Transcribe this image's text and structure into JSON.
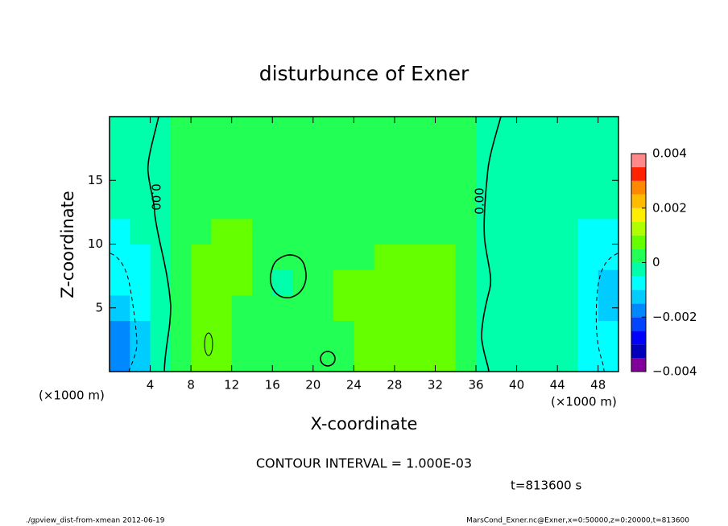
{
  "chart_data": {
    "type": "contourf",
    "title": "disturbunce of Exner",
    "x_label": "X-coordinate",
    "y_label": "Z-coordinate",
    "x_unit": "(×1000 m)",
    "y_unit": "(×1000 m)",
    "xlim": [
      0,
      50
    ],
    "ylim": [
      0,
      20
    ],
    "xticks": [
      4,
      8,
      12,
      16,
      20,
      24,
      28,
      32,
      36,
      40,
      44,
      48
    ],
    "yticks": [
      5,
      10,
      15
    ],
    "x": [
      1,
      3,
      5,
      7,
      9,
      11,
      13,
      15,
      17,
      19,
      21,
      23,
      25,
      27,
      29,
      31,
      33,
      35,
      37,
      39,
      41,
      43,
      45,
      47,
      49
    ],
    "y": [
      1,
      3,
      5,
      7,
      9,
      11,
      13,
      15,
      17,
      19
    ],
    "values": [
      [
        -0.0016,
        -0.0018,
        -0.0014,
        -0.001,
        -0.0007,
        -0.0006,
        -0.0004,
        -0.0003,
        -0.0002,
        -0.0002
      ],
      [
        -0.0011,
        -0.0012,
        -0.001,
        -0.0008,
        -0.0006,
        -0.0004,
        -0.0003,
        -0.0002,
        -0.0002,
        -0.0002
      ],
      [
        -0.0002,
        -0.0003,
        -0.0003,
        -0.0003,
        -0.0002,
        -0.0001,
        -0.0001,
        -0.0001,
        -0.0001,
        -0.0001
      ],
      [
        0.0004,
        0.0004,
        0.0004,
        0.0003,
        0.0003,
        0.0002,
        0.0002,
        0.0002,
        0.0002,
        0.0002
      ],
      [
        0.0007,
        0.0007,
        0.0006,
        0.0006,
        0.0005,
        0.0004,
        0.0002,
        0.0002,
        0.0002,
        0.0002
      ],
      [
        0.0006,
        0.0006,
        0.0006,
        0.0006,
        0.0006,
        0.0005,
        0.0002,
        0.0002,
        0.0002,
        0.0002
      ],
      [
        0.0004,
        0.0004,
        0.0004,
        0.0005,
        0.0006,
        0.0006,
        0.0003,
        0.0002,
        0.0002,
        0.0002
      ],
      [
        0.0003,
        0.0003,
        0.0003,
        0.0003,
        0.0003,
        0.0003,
        0.0002,
        0.0002,
        0.0002,
        0.0002
      ],
      [
        0.0003,
        0.0003,
        0.0002,
        -0.0001,
        0.0002,
        0.0002,
        0.0002,
        0.0002,
        0.0002,
        0.0002
      ],
      [
        0.0003,
        0.0003,
        0.0003,
        0.0002,
        0.0003,
        0.0002,
        0.0002,
        0.0002,
        0.0002,
        0.0002
      ],
      [
        0.0002,
        0.0003,
        0.0004,
        0.0003,
        0.0003,
        0.0002,
        0.0002,
        0.0002,
        0.0002,
        0.0002
      ],
      [
        0.0004,
        0.0004,
        0.0005,
        0.0005,
        0.0004,
        0.0003,
        0.0002,
        0.0002,
        0.0002,
        0.0002
      ],
      [
        0.0006,
        0.0006,
        0.0006,
        0.0006,
        0.0004,
        0.0003,
        0.0002,
        0.0002,
        0.0002,
        0.0002
      ],
      [
        0.0006,
        0.0006,
        0.0006,
        0.0006,
        0.0005,
        0.0004,
        0.0003,
        0.0002,
        0.0002,
        0.0002
      ],
      [
        0.0005,
        0.0006,
        0.0006,
        0.0006,
        0.0006,
        0.0004,
        0.0003,
        0.0002,
        0.0002,
        0.0002
      ],
      [
        0.0006,
        0.0006,
        0.0006,
        0.0006,
        0.0005,
        0.0004,
        0.0003,
        0.0002,
        0.0002,
        0.0002
      ],
      [
        0.0005,
        0.0006,
        0.0006,
        0.0006,
        0.0005,
        0.0003,
        0.0002,
        0.0002,
        0.0002,
        0.0002
      ],
      [
        0.0003,
        0.0003,
        0.0003,
        0.0003,
        0.0003,
        0.0002,
        0.0002,
        0.0002,
        0.0002,
        0.0002
      ],
      [
        -0.0001,
        -0.0001,
        -0.0001,
        -0.0001,
        -0.0001,
        -0.0001,
        -0.0001,
        -0.0001,
        -0.0001,
        -0.0001
      ],
      [
        -0.0003,
        -0.0004,
        -0.0003,
        -0.0003,
        -0.0002,
        -0.0002,
        -0.0002,
        -0.0002,
        -0.0002,
        -0.0002
      ],
      [
        -0.0003,
        -0.0003,
        -0.0003,
        -0.0003,
        -0.0003,
        -0.0003,
        -0.0003,
        -0.0003,
        -0.0003,
        -0.0003
      ],
      [
        -0.0003,
        -0.0003,
        -0.0003,
        -0.0003,
        -0.0003,
        -0.0003,
        -0.0003,
        -0.0002,
        -0.0002,
        -0.0002
      ],
      [
        -0.0004,
        -0.0004,
        -0.0004,
        -0.0004,
        -0.0004,
        -0.0004,
        -0.0004,
        -0.0004,
        -0.0003,
        -0.0002
      ],
      [
        -0.0006,
        -0.0006,
        -0.0006,
        -0.0007,
        -0.0007,
        -0.0006,
        -0.0005,
        -0.0004,
        -0.0003,
        -0.0003
      ],
      [
        -0.0009,
        -0.001,
        -0.0011,
        -0.0011,
        -0.001,
        -0.0007,
        -0.0005,
        -0.0004,
        -0.0003,
        -0.0003
      ]
    ],
    "levels": [
      -0.004,
      -0.0035,
      -0.003,
      -0.0025,
      -0.002,
      -0.0015,
      -0.001,
      -0.0005,
      0,
      0.0005,
      0.001,
      0.0015,
      0.002,
      0.0025,
      0.003,
      0.0035,
      0.004
    ],
    "colors": [
      "#800099",
      "#0000bb",
      "#0000ff",
      "#0044ff",
      "#0088ff",
      "#00ccff",
      "#00ffff",
      "#00ffaa",
      "#22ff55",
      "#66ff00",
      "#b0ff00",
      "#ffee00",
      "#ffbb00",
      "#ff8800",
      "#ff2200",
      "#ff8888"
    ],
    "clim": [
      -0.004,
      0.004
    ],
    "cticks": [
      0.004,
      0.002,
      0,
      {
        "value": -0.002,
        "label": "−0.002"
      },
      {
        "value": -0.004,
        "label": "−0.004"
      }
    ],
    "contour_labels": [
      "0.00",
      "0.00"
    ],
    "contour_interval": "CONTOUR INTERVAL = 1.000E-03",
    "time_label": "t=813600 s",
    "footer_left": "./gpview_dist-from-xmean  2012-06-19",
    "footer_right": "MarsCond_Exner.nc@Exner,x=0:50000,z=0:20000,t=813600"
  }
}
